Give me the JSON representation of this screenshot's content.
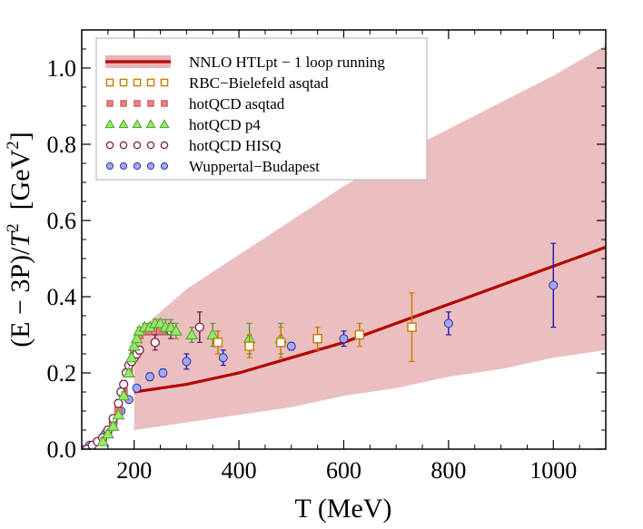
{
  "chart_data": {
    "type": "scatter",
    "xlabel": "T (MeV)",
    "ylabel_parts": {
      "main": "(E − 3P)/",
      "t": "T",
      "t_exp": "2",
      "unit_open": "  [GeV",
      "unit_exp": "2",
      "unit_close": "]"
    },
    "xlim": [
      100,
      1100
    ],
    "ylim": [
      0,
      1.1
    ],
    "xticks": [
      200,
      400,
      600,
      800,
      1000
    ],
    "yticks": [
      0.0,
      0.2,
      0.4,
      0.6,
      0.8,
      1.0
    ],
    "ytick_labels": [
      "0.0",
      "0.2",
      "0.4",
      "0.6",
      "0.8",
      "1.0"
    ],
    "grid": false,
    "legend_position": "top-left",
    "colors": {
      "band_fill": "#e8b4b4",
      "band_line": "#b30000",
      "rbc_marker": "#888888",
      "rbc_error": "#cc7a00",
      "asqtad": "#f08080",
      "p4": "#90ee60",
      "p4_edge": "#5a9a3a",
      "hisq": "#7a2040",
      "wb": "#a0a8f0",
      "wb_edge": "#3030a0",
      "wb_error": "#2020b0"
    },
    "legend": [
      {
        "label": "NNLO HTLpt − 1 loop running",
        "kind": "band"
      },
      {
        "label": "RBC−Bielefeld asqtad",
        "kind": "rbc"
      },
      {
        "label": "hotQCD asqtad",
        "kind": "asqtad"
      },
      {
        "label": "hotQCD p4",
        "kind": "p4"
      },
      {
        "label": "hotQCD HISQ",
        "kind": "hisq"
      },
      {
        "label": "Wuppertal−Budapest",
        "kind": "wb"
      }
    ],
    "band": {
      "name": "NNLO HTLpt − 1 loop running",
      "x": [
        200,
        300,
        400,
        500,
        600,
        700,
        800,
        900,
        1000,
        1100
      ],
      "central": [
        0.15,
        0.17,
        0.2,
        0.24,
        0.28,
        0.33,
        0.38,
        0.43,
        0.48,
        0.53
      ],
      "upper": [
        0.3,
        0.42,
        0.51,
        0.6,
        0.69,
        0.77,
        0.84,
        0.91,
        0.98,
        1.06
      ],
      "lower": [
        0.05,
        0.07,
        0.09,
        0.11,
        0.14,
        0.16,
        0.19,
        0.21,
        0.24,
        0.26
      ]
    },
    "series": [
      {
        "name": "RBC−Bielefeld asqtad",
        "kind": "rbc",
        "x": [
          360,
          420,
          480,
          550,
          630,
          730
        ],
        "y": [
          0.28,
          0.27,
          0.28,
          0.29,
          0.3,
          0.32
        ],
        "err": [
          0.03,
          0.03,
          0.04,
          0.03,
          0.03,
          0.09
        ]
      },
      {
        "name": "hotQCD asqtad",
        "kind": "asqtad",
        "x": [
          140,
          150,
          160,
          170,
          180,
          190,
          200,
          210,
          220,
          230,
          240,
          250,
          260
        ],
        "y": [
          0.02,
          0.04,
          0.06,
          0.1,
          0.15,
          0.2,
          0.26,
          0.3,
          0.31,
          0.31,
          0.31,
          0.31,
          0.31
        ],
        "err": [
          0.01,
          0.01,
          0.01,
          0.01,
          0.01,
          0.01,
          0.01,
          0.01,
          0.01,
          0.01,
          0.01,
          0.01,
          0.01
        ]
      },
      {
        "name": "hotQCD p4",
        "kind": "p4",
        "x": [
          140,
          150,
          160,
          170,
          180,
          190,
          195,
          200,
          205,
          210,
          220,
          230,
          240,
          250,
          260,
          270,
          280,
          310,
          350,
          420,
          480
        ],
        "y": [
          0.02,
          0.04,
          0.06,
          0.09,
          0.14,
          0.2,
          0.24,
          0.27,
          0.29,
          0.31,
          0.32,
          0.32,
          0.33,
          0.33,
          0.32,
          0.32,
          0.31,
          0.3,
          0.3,
          0.29,
          0.29
        ],
        "err": [
          0.01,
          0.01,
          0.01,
          0.01,
          0.01,
          0.01,
          0.01,
          0.01,
          0.01,
          0.01,
          0.01,
          0.01,
          0.01,
          0.01,
          0.02,
          0.02,
          0.02,
          0.02,
          0.03,
          0.04,
          0.04
        ]
      },
      {
        "name": "hotQCD HISQ",
        "kind": "hisq",
        "x": [
          110,
          120,
          130,
          140,
          150,
          160,
          170,
          175,
          180,
          185,
          190,
          195,
          200,
          205,
          210,
          240,
          270,
          325
        ],
        "y": [
          0.0,
          0.01,
          0.02,
          0.03,
          0.05,
          0.08,
          0.12,
          0.15,
          0.17,
          0.2,
          0.22,
          0.23,
          0.24,
          0.25,
          0.26,
          0.28,
          0.31,
          0.32
        ],
        "err": [
          0.005,
          0.005,
          0.005,
          0.01,
          0.01,
          0.01,
          0.01,
          0.01,
          0.01,
          0.01,
          0.01,
          0.01,
          0.01,
          0.01,
          0.01,
          0.02,
          0.02,
          0.04
        ]
      },
      {
        "name": "Wuppertal−Budapest",
        "kind": "wb",
        "x": [
          100,
          115,
          130,
          145,
          160,
          175,
          190,
          205,
          230,
          255,
          300,
          370,
          500,
          600,
          800,
          1000
        ],
        "y": [
          0.0,
          0.01,
          0.02,
          0.04,
          0.07,
          0.1,
          0.13,
          0.16,
          0.19,
          0.2,
          0.23,
          0.24,
          0.27,
          0.29,
          0.33,
          0.43
        ],
        "err": [
          0.005,
          0.005,
          0.005,
          0.005,
          0.005,
          0.005,
          0.005,
          0.005,
          0.01,
          0.01,
          0.02,
          0.02,
          0.01,
          0.02,
          0.03,
          0.11
        ]
      }
    ]
  }
}
